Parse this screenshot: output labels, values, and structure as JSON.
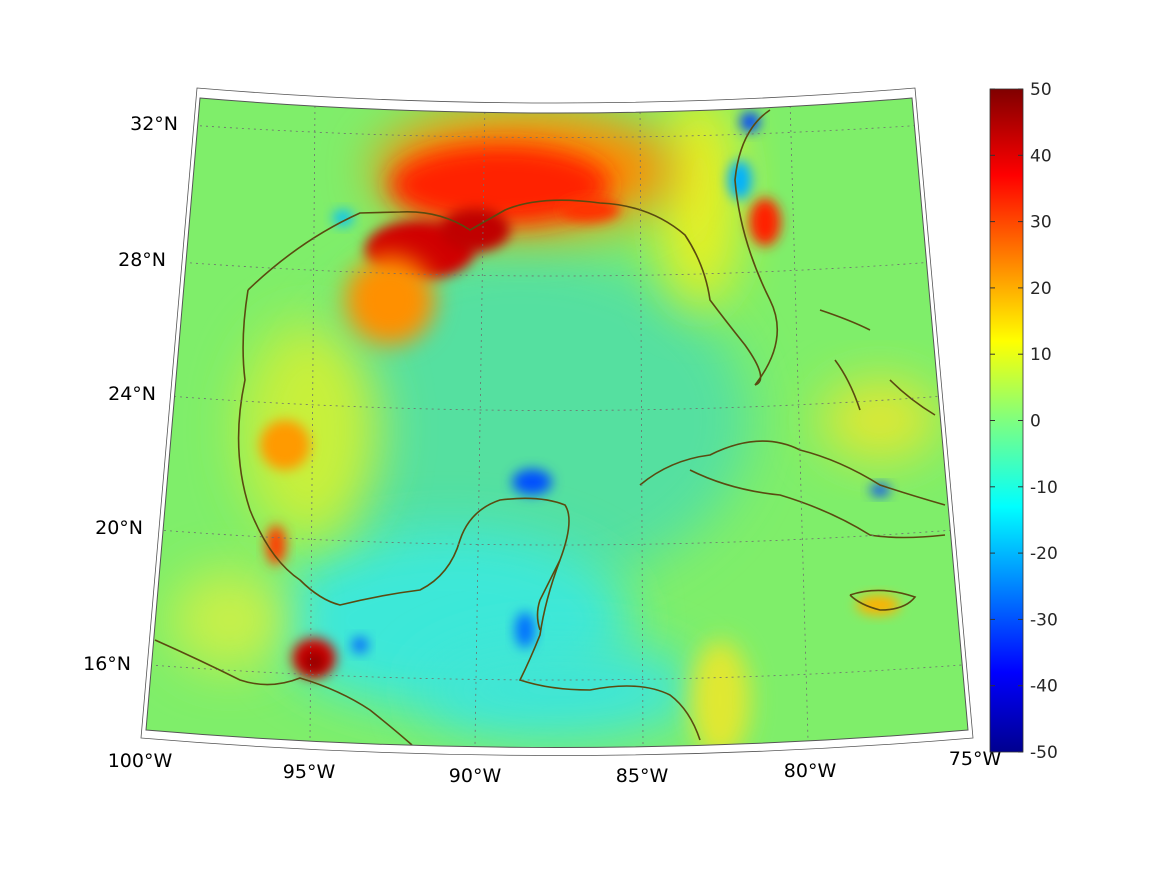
{
  "map": {
    "projection": "conic",
    "grid": true,
    "lon_labels": [
      "100°W",
      "95°W",
      "90°W",
      "85°W",
      "80°W",
      "75°W"
    ],
    "lat_labels": [
      "32°N",
      "28°N",
      "24°N",
      "20°N",
      "16°N"
    ],
    "colorbar": {
      "colormap": "jet",
      "range": [
        -50,
        50
      ],
      "tick_labels": [
        "50",
        "40",
        "30",
        "20",
        "10",
        "0",
        "-10",
        "-20",
        "-30",
        "-40",
        "-50"
      ]
    },
    "coastline_color": "#5a4a10",
    "colors": {
      "background": "#5fe68a",
      "high": "#8b0000",
      "low": "#00008b"
    }
  }
}
